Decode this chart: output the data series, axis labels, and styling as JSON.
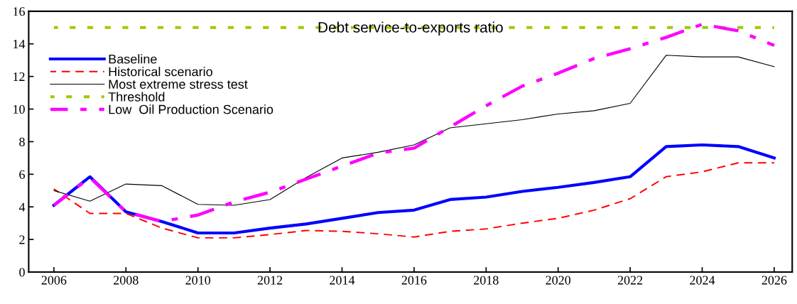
{
  "chart_data": {
    "type": "line",
    "title": "Debt service-to-exports ratio",
    "x": [
      2006,
      2007,
      2008,
      2009,
      2010,
      2011,
      2012,
      2013,
      2014,
      2015,
      2016,
      2017,
      2018,
      2019,
      2020,
      2021,
      2022,
      2023,
      2024,
      2025,
      2026
    ],
    "series": [
      {
        "name": "Baseline",
        "color": "#0000ff",
        "line_style": "solid",
        "values": [
          4.1,
          5.85,
          3.7,
          3.1,
          2.4,
          2.4,
          2.7,
          2.95,
          3.3,
          3.65,
          3.8,
          4.45,
          4.6,
          4.95,
          5.2,
          5.5,
          5.85,
          7.7,
          7.8,
          7.7,
          7.0
        ]
      },
      {
        "name": "Historical scenario",
        "color": "#ff0000",
        "line_style": "dashed",
        "values": [
          5.1,
          3.6,
          3.6,
          2.7,
          2.1,
          2.1,
          2.3,
          2.55,
          2.5,
          2.35,
          2.15,
          2.5,
          2.65,
          3.0,
          3.3,
          3.8,
          4.5,
          5.85,
          6.15,
          6.7,
          6.7
        ]
      },
      {
        "name": "Most extreme stress test",
        "color": "#000000",
        "line_style": "solid",
        "values": [
          5.0,
          4.35,
          5.4,
          5.3,
          4.15,
          4.1,
          4.45,
          5.8,
          7.0,
          7.35,
          7.8,
          8.85,
          9.1,
          9.35,
          9.7,
          9.9,
          10.35,
          13.3,
          13.2,
          13.2,
          12.6
        ]
      },
      {
        "name": "Threshold",
        "color": "#99cc00",
        "line_style": "dotted",
        "values": [
          15,
          15,
          15,
          15,
          15,
          15,
          15,
          15,
          15,
          15,
          15,
          15,
          15,
          15,
          15,
          15,
          15,
          15,
          15,
          15,
          15
        ]
      },
      {
        "name": "Low  Oil Production Scenario",
        "color": "#ff00ff",
        "line_style": "dashdot",
        "values": [
          4.1,
          5.8,
          3.7,
          3.1,
          3.5,
          4.3,
          4.9,
          5.7,
          6.5,
          7.3,
          7.6,
          8.9,
          10.2,
          11.4,
          12.2,
          13.1,
          13.7,
          14.4,
          15.2,
          14.8,
          13.9
        ]
      }
    ],
    "xlim": [
      2005.3,
      2026.5
    ],
    "xticks": [
      2006,
      2008,
      2010,
      2012,
      2014,
      2016,
      2018,
      2020,
      2022,
      2024,
      2026
    ],
    "ylim": [
      0,
      16
    ],
    "yticks": [
      0,
      2,
      4,
      6,
      8,
      10,
      12,
      14,
      16
    ],
    "grid": false,
    "legend": "top left",
    "marker": "none"
  }
}
